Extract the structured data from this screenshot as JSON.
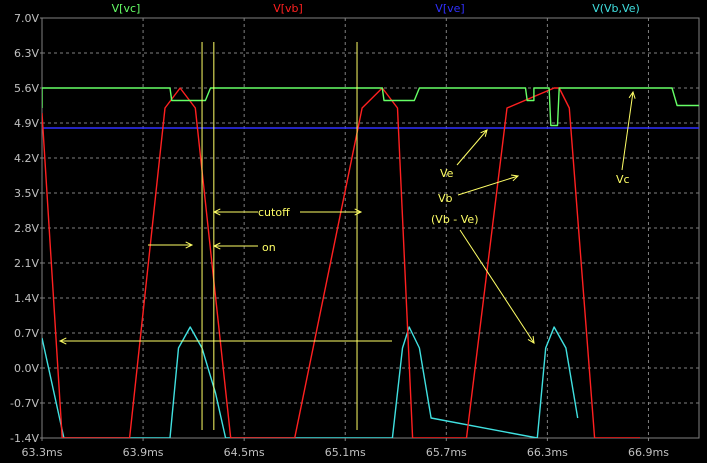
{
  "chart_data": {
    "type": "line",
    "x_unit": "ms",
    "y_unit": "V",
    "xlim": [
      63.3,
      67.2
    ],
    "ylim": [
      -1.4,
      7.0
    ],
    "x_ticks": [
      63.3,
      63.9,
      64.5,
      65.1,
      65.7,
      66.3,
      66.9
    ],
    "x_tick_labels": [
      "63.3ms",
      "63.9ms",
      "64.5ms",
      "65.1ms",
      "65.7ms",
      "66.3ms",
      "66.9ms"
    ],
    "y_ticks": [
      7.0,
      6.3,
      5.6,
      4.9,
      4.2,
      3.5,
      2.8,
      2.1,
      1.4,
      0.7,
      0.0,
      -0.7,
      -1.4
    ],
    "y_tick_labels": [
      "7.0V",
      "6.3V",
      "5.6V",
      "4.9V",
      "4.2V",
      "3.5V",
      "2.8V",
      "2.1V",
      "1.4V",
      "0.7V",
      "0.0V",
      "-0.7V",
      "-1.4V"
    ],
    "grid": true,
    "legend_position": "top",
    "background": "#000000",
    "axis_color": "#808080",
    "tick_label_color": "#c0c0c0",
    "series": [
      {
        "name": "V[vc]",
        "color": "#66ff66",
        "x": [
          63.3,
          63.3,
          64.06,
          64.07,
          64.27,
          64.3,
          65.32,
          65.33,
          65.51,
          65.54,
          66.17,
          66.18,
          66.22,
          66.22,
          66.31,
          66.32,
          66.36,
          66.37,
          67.04,
          67.07,
          67.2
        ],
        "y": [
          5.2,
          5.6,
          5.6,
          5.35,
          5.35,
          5.6,
          5.6,
          5.35,
          5.35,
          5.6,
          5.6,
          5.35,
          5.35,
          5.6,
          5.6,
          4.85,
          4.85,
          5.6,
          5.6,
          5.25,
          5.25
        ]
      },
      {
        "name": "V[vb]",
        "color": "#ff2020",
        "x": [
          63.3,
          63.42,
          63.82,
          64.03,
          64.12,
          64.21,
          64.42,
          64.8,
          65.2,
          65.32,
          65.41,
          65.5,
          65.82,
          66.06,
          66.34,
          66.37,
          66.43,
          66.58,
          66.85
        ],
        "y": [
          5.1,
          -1.4,
          -1.4,
          5.2,
          5.6,
          5.2,
          -1.4,
          -1.4,
          5.2,
          5.6,
          5.2,
          -1.4,
          -1.4,
          5.2,
          5.6,
          5.6,
          5.2,
          -1.4,
          -1.4
        ]
      },
      {
        "name": "V[ve]",
        "color": "#3030ff",
        "x": [
          63.3,
          67.2
        ],
        "y": [
          4.8,
          4.8
        ]
      },
      {
        "name": "V(Vb,Ve)",
        "color": "#40e0e0",
        "x": [
          63.3,
          63.43,
          64.06,
          64.11,
          64.18,
          64.25,
          64.33,
          64.39,
          65.38,
          65.44,
          65.48,
          65.54,
          65.61,
          66.24,
          66.29,
          66.34,
          66.41,
          66.48
        ],
        "y": [
          0.6,
          -1.4,
          -1.4,
          0.4,
          0.82,
          0.4,
          -0.5,
          -1.4,
          -1.4,
          0.4,
          0.82,
          0.4,
          -1.0,
          -1.4,
          0.4,
          0.82,
          0.4,
          -1.0
        ]
      }
    ],
    "annotations": [
      {
        "text": "cutoff",
        "color": "#ffff66"
      },
      {
        "text": "on",
        "color": "#ffff66"
      },
      {
        "text": "Ve",
        "color": "#ffff66"
      },
      {
        "text": "Vb",
        "color": "#ffff66"
      },
      {
        "text": "(Vb - Ve)",
        "color": "#ffff66"
      },
      {
        "text": "Vc",
        "color": "#ffff66"
      }
    ],
    "cursor_lines_ms": [
      64.25,
      64.32,
      65.17
    ]
  }
}
